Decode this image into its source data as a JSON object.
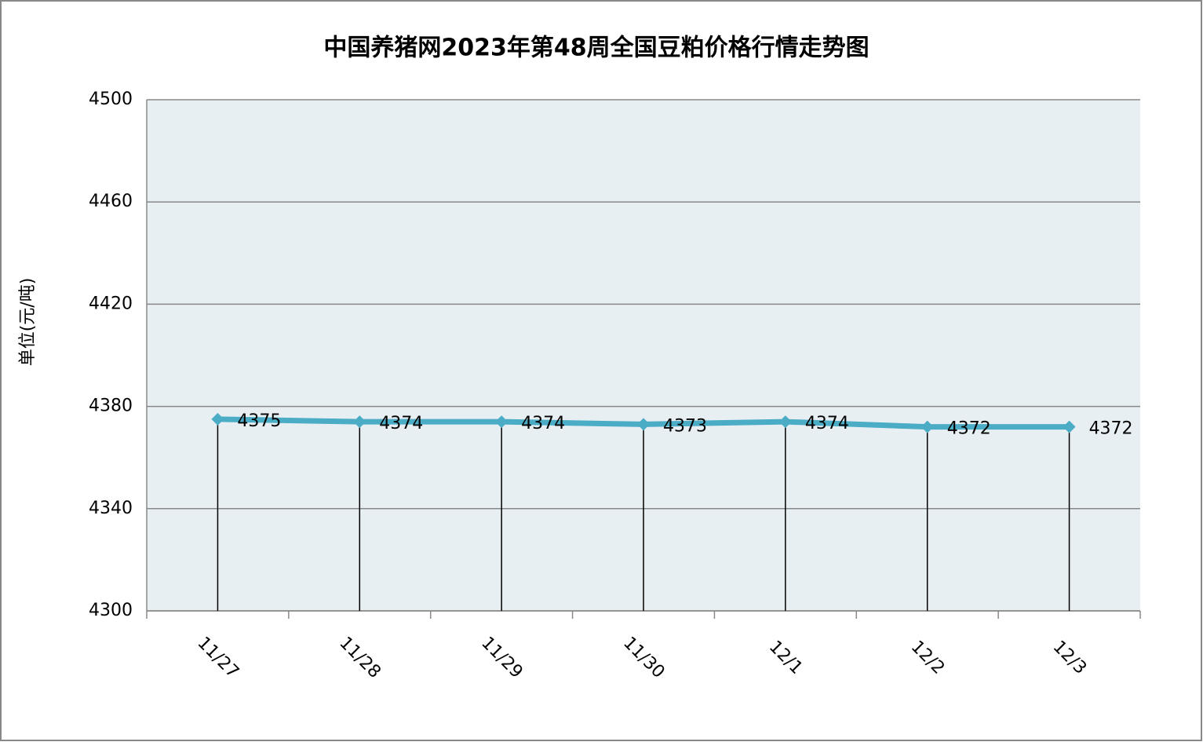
{
  "chart_data": {
    "type": "line",
    "title": "中国养猪网2023年第48周全国豆粕价格行情走势图",
    "y_label": "单位(元/吨)",
    "categories": [
      "11/27",
      "11/28",
      "11/29",
      "11/30",
      "12/1",
      "12/2",
      "12/3"
    ],
    "values": [
      4375,
      4374,
      4374,
      4373,
      4374,
      4372,
      4372
    ],
    "color": "#4bacc6",
    "ylim": [
      4300,
      4500
    ],
    "yticks": [
      4300,
      4340,
      4380,
      4420,
      4460,
      4500
    ],
    "grid": true
  }
}
